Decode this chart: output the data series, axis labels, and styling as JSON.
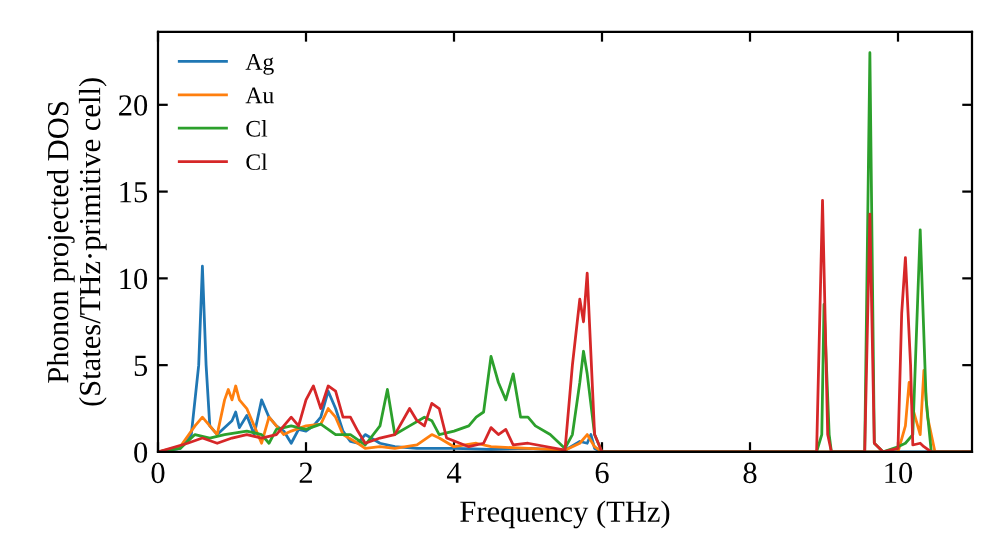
{
  "chart_data": {
    "type": "line",
    "xlabel": "Frequency (THz)",
    "ylabel": "Phonon projected DOS\n(States/THz·primitive cell)",
    "xlim": [
      0,
      11
    ],
    "ylim": [
      0,
      24.2
    ],
    "xticks": [
      0,
      2,
      4,
      6,
      8,
      10
    ],
    "yticks": [
      0,
      5,
      10,
      15,
      20
    ],
    "grid": false,
    "legend": "top left",
    "marker": "none",
    "line_style": "solid",
    "series": [
      {
        "name": "Ag",
        "color": "#1f77b4",
        "x": [
          0,
          0.3,
          0.45,
          0.55,
          0.6,
          0.65,
          0.7,
          0.8,
          1.0,
          1.05,
          1.1,
          1.2,
          1.3,
          1.4,
          1.5,
          1.6,
          1.7,
          1.8,
          1.9,
          2.0,
          2.1,
          2.2,
          2.3,
          2.4,
          2.5,
          2.6,
          2.7,
          2.8,
          3.0,
          3.2,
          3.5,
          4.0,
          4.5,
          5.0,
          5.5,
          5.7,
          5.8,
          5.85,
          5.9,
          6.0,
          8.9,
          11
        ],
        "values": [
          0,
          0.2,
          1,
          5,
          10.7,
          5,
          1.5,
          1,
          1.8,
          2.3,
          1.4,
          2.1,
          1.0,
          3.0,
          2.0,
          1.5,
          1.2,
          0.5,
          1.3,
          1.2,
          1.5,
          2.0,
          3.5,
          2.5,
          1.2,
          0.6,
          0.5,
          1.0,
          0.5,
          0.3,
          0.2,
          0.2,
          0.15,
          0.2,
          0.1,
          0.6,
          0.5,
          1.0,
          0.2,
          0,
          0,
          0
        ]
      },
      {
        "name": "Au",
        "color": "#ff7f0e",
        "x": [
          0,
          0.3,
          0.5,
          0.6,
          0.7,
          0.8,
          0.9,
          0.95,
          1.0,
          1.05,
          1.1,
          1.2,
          1.3,
          1.4,
          1.5,
          1.6,
          1.7,
          1.8,
          2.0,
          2.2,
          2.3,
          2.4,
          2.5,
          2.7,
          2.8,
          3.0,
          3.2,
          3.5,
          3.7,
          3.8,
          4.0,
          4.3,
          4.5,
          5.0,
          5.5,
          5.7,
          5.8,
          5.9,
          6.0,
          10.0,
          10.1,
          10.15,
          10.2,
          10.3,
          10.35,
          10.4,
          10.5,
          11
        ],
        "values": [
          0,
          0.3,
          1.5,
          2.0,
          1.5,
          1.0,
          3.0,
          3.6,
          3.0,
          3.8,
          3.0,
          2.5,
          1.5,
          0.5,
          2.0,
          1.5,
          1.0,
          1.2,
          1.5,
          1.6,
          2.5,
          2.0,
          1.0,
          0.5,
          0.2,
          0.3,
          0.2,
          0.4,
          1.0,
          0.8,
          0.3,
          0.5,
          0.3,
          0.2,
          0.1,
          0.5,
          1.0,
          0.3,
          0,
          0,
          1.5,
          4.0,
          2.5,
          1.0,
          4.7,
          2.0,
          0,
          0
        ]
      },
      {
        "name": "Cl",
        "color": "#2ca02c",
        "x": [
          0,
          0.3,
          0.5,
          0.7,
          0.9,
          1.2,
          1.4,
          1.5,
          1.6,
          1.8,
          2.0,
          2.2,
          2.4,
          2.6,
          2.8,
          3.0,
          3.1,
          3.2,
          3.4,
          3.6,
          3.7,
          3.8,
          4.0,
          4.2,
          4.3,
          4.4,
          4.5,
          4.6,
          4.7,
          4.8,
          4.9,
          5.0,
          5.1,
          5.3,
          5.5,
          5.6,
          5.7,
          5.75,
          5.8,
          5.9,
          6.0,
          8.9,
          8.97,
          9.0,
          9.07,
          9.1,
          9.55,
          9.62,
          9.68,
          9.8,
          10.0,
          10.1,
          10.2,
          10.3,
          10.38,
          10.45,
          11
        ],
        "values": [
          0,
          0.2,
          1.0,
          0.8,
          1.0,
          1.2,
          1.0,
          0.5,
          1.3,
          1.5,
          1.3,
          1.6,
          1.0,
          1.0,
          0.4,
          1.5,
          3.6,
          1.0,
          1.5,
          2.0,
          1.8,
          1.0,
          1.2,
          1.5,
          2.0,
          2.3,
          5.5,
          4.0,
          3.0,
          4.5,
          2.0,
          2.0,
          1.5,
          1.0,
          0.2,
          1.0,
          4.0,
          5.8,
          4.5,
          1.0,
          0,
          0,
          1,
          8.5,
          1,
          0,
          0,
          23,
          0.5,
          0,
          0.3,
          0.5,
          1.0,
          12.8,
          3,
          0,
          0
        ]
      },
      {
        "name": "Cl",
        "color": "#d62728",
        "x": [
          0,
          0.4,
          0.6,
          0.8,
          1.0,
          1.2,
          1.4,
          1.6,
          1.8,
          1.9,
          2.0,
          2.1,
          2.2,
          2.3,
          2.4,
          2.5,
          2.6,
          2.7,
          2.8,
          3.0,
          3.2,
          3.4,
          3.5,
          3.6,
          3.7,
          3.8,
          3.9,
          4.2,
          4.4,
          4.5,
          4.6,
          4.7,
          4.8,
          5.0,
          5.5,
          5.6,
          5.7,
          5.75,
          5.8,
          5.9,
          6.0,
          8.9,
          8.98,
          9.05,
          9.1,
          9.55,
          9.62,
          9.68,
          9.8,
          10.0,
          10.05,
          10.1,
          10.17,
          10.2,
          10.3,
          10.35,
          10.45,
          11
        ],
        "values": [
          0,
          0.5,
          0.8,
          0.5,
          0.8,
          1.0,
          0.8,
          1.0,
          2.0,
          1.5,
          3.0,
          3.8,
          2.5,
          3.8,
          3.5,
          2.0,
          2.0,
          1.2,
          0.5,
          0.8,
          1.0,
          2.5,
          1.8,
          1.5,
          2.8,
          2.5,
          0.8,
          0.3,
          0.5,
          1.4,
          1.0,
          1.3,
          0.4,
          0.5,
          0.1,
          5.0,
          8.8,
          7.5,
          10.3,
          1.0,
          0,
          0,
          14.5,
          1,
          0,
          0,
          13.7,
          0.5,
          0,
          0.2,
          8,
          11.2,
          5,
          0.4,
          0.5,
          0.3,
          0,
          0
        ]
      }
    ]
  }
}
